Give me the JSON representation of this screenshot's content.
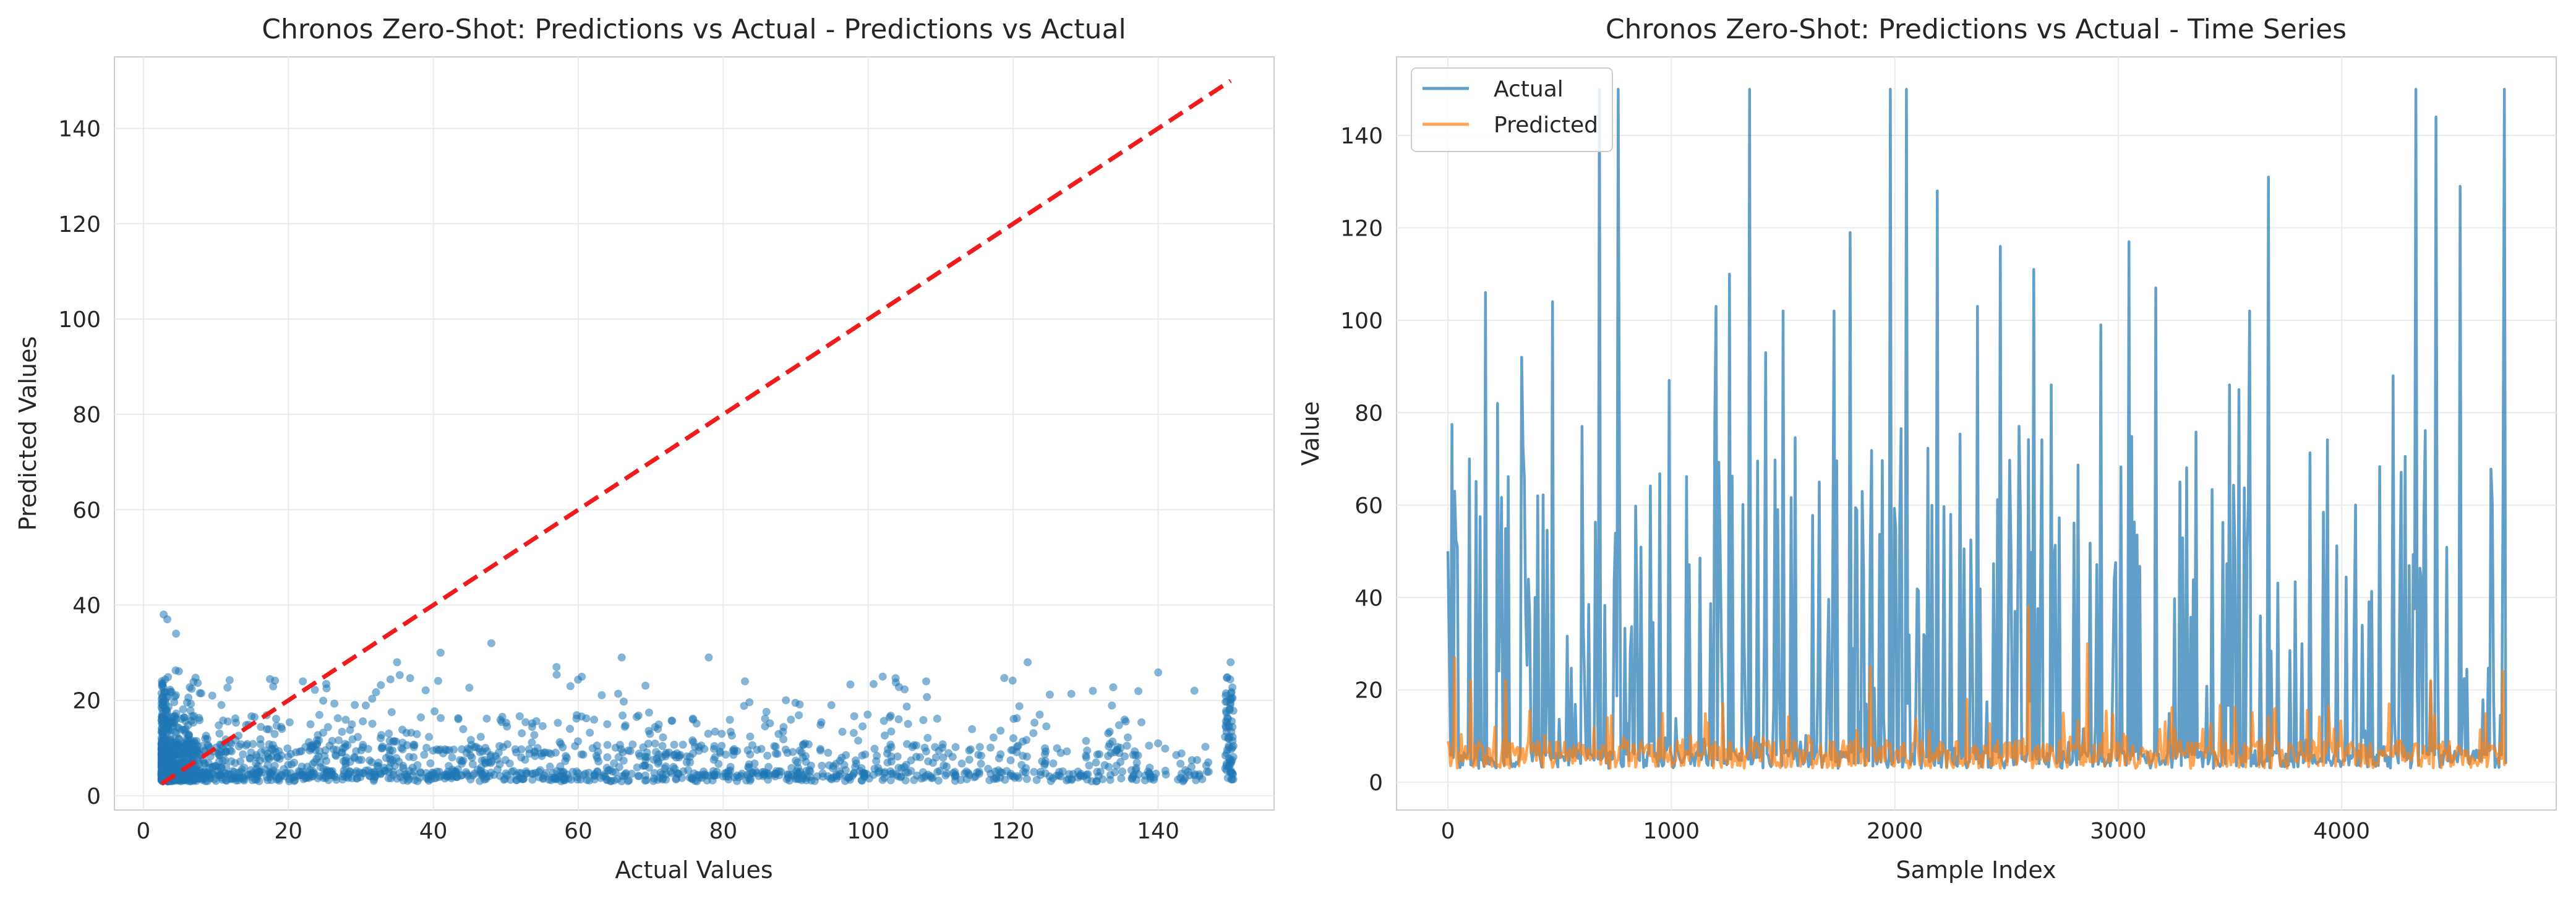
{
  "chart_data": [
    {
      "type": "scatter",
      "title": "Chronos Zero-Shot: Predictions vs Actual - Predictions vs Actual",
      "xlabel": "Actual Values",
      "ylabel": "Predicted Values",
      "xlim": [
        -4,
        156
      ],
      "ylim": [
        -3,
        155
      ],
      "xticks": [
        0,
        20,
        40,
        60,
        80,
        100,
        120,
        140
      ],
      "yticks": [
        0,
        20,
        40,
        60,
        80,
        100,
        120,
        140
      ],
      "grid": true,
      "marker_color": "#1f77b4",
      "marker_alpha": 0.55,
      "reference_line": {
        "x": [
          2.5,
          150
        ],
        "y": [
          2.5,
          150
        ],
        "color": "#ee1c1c",
        "style": "dashed"
      },
      "point_summary": {
        "count_approx": 4700,
        "actual_range": [
          2.5,
          150
        ],
        "predicted_range": [
          3,
          38
        ],
        "pile_at_actual_150_predicted_range": [
          3,
          28
        ]
      },
      "notable_points": [
        [
          2.8,
          38
        ],
        [
          3.3,
          37
        ],
        [
          4.5,
          34
        ],
        [
          9.5,
          21
        ],
        [
          22,
          24
        ],
        [
          35,
          28
        ],
        [
          41,
          30
        ],
        [
          48,
          32
        ],
        [
          57,
          27
        ],
        [
          66,
          29
        ],
        [
          78,
          29
        ],
        [
          83,
          24
        ],
        [
          102,
          25
        ],
        [
          108,
          24
        ],
        [
          122,
          28
        ],
        [
          131,
          22
        ],
        [
          140,
          11
        ],
        [
          150,
          28
        ]
      ]
    },
    {
      "type": "line",
      "title": "Chronos Zero-Shot: Predictions vs Actual - Time Series",
      "xlabel": "Sample Index",
      "ylabel": "Value",
      "xlim": [
        -230,
        4960
      ],
      "ylim": [
        -6,
        157
      ],
      "xticks": [
        0,
        1000,
        2000,
        3000,
        4000
      ],
      "yticks": [
        0,
        20,
        40,
        60,
        80,
        100,
        120,
        140
      ],
      "grid": true,
      "legend": "top-left",
      "series": [
        {
          "name": "Actual",
          "color": "#1f77b4",
          "alpha": 0.7,
          "length_approx": 4740,
          "value_range": [
            2.5,
            150
          ],
          "peaks": [
            [
              0,
              50
            ],
            [
              30,
              63
            ],
            [
              95,
              70
            ],
            [
              170,
              106
            ],
            [
              220,
              82
            ],
            [
              330,
              92
            ],
            [
              400,
              62
            ],
            [
              470,
              104
            ],
            [
              680,
              150
            ],
            [
              760,
              150
            ],
            [
              990,
              87
            ],
            [
              1200,
              103
            ],
            [
              1260,
              110
            ],
            [
              1350,
              150
            ],
            [
              1420,
              93
            ],
            [
              1500,
              102
            ],
            [
              1660,
              65
            ],
            [
              1730,
              102
            ],
            [
              1800,
              119
            ],
            [
              1980,
              150
            ],
            [
              2050,
              150
            ],
            [
              2190,
              128
            ],
            [
              2370,
              103
            ],
            [
              2470,
              116
            ],
            [
              2620,
              111
            ],
            [
              2700,
              86
            ],
            [
              2920,
              99
            ],
            [
              3050,
              117
            ],
            [
              3170,
              107
            ],
            [
              3500,
              86
            ],
            [
              3540,
              85
            ],
            [
              3590,
              102
            ],
            [
              3670,
              131
            ],
            [
              3820,
              30
            ],
            [
              4060,
              60
            ],
            [
              4230,
              88
            ],
            [
              4330,
              150
            ],
            [
              4420,
              144
            ],
            [
              4530,
              129
            ],
            [
              4730,
              150
            ]
          ]
        },
        {
          "name": "Predicted",
          "color": "#ff7f0e",
          "alpha": 0.7,
          "length_approx": 4740,
          "value_range": [
            3,
            38
          ],
          "peaks": [
            [
              30,
              27
            ],
            [
              100,
              22
            ],
            [
              260,
              22
            ],
            [
              1230,
              17
            ],
            [
              1890,
              25
            ],
            [
              2320,
              18
            ],
            [
              2600,
              38
            ],
            [
              2860,
              30
            ],
            [
              3700,
              16
            ],
            [
              4210,
              17
            ],
            [
              4400,
              22
            ],
            [
              4720,
              24
            ]
          ]
        }
      ]
    }
  ]
}
